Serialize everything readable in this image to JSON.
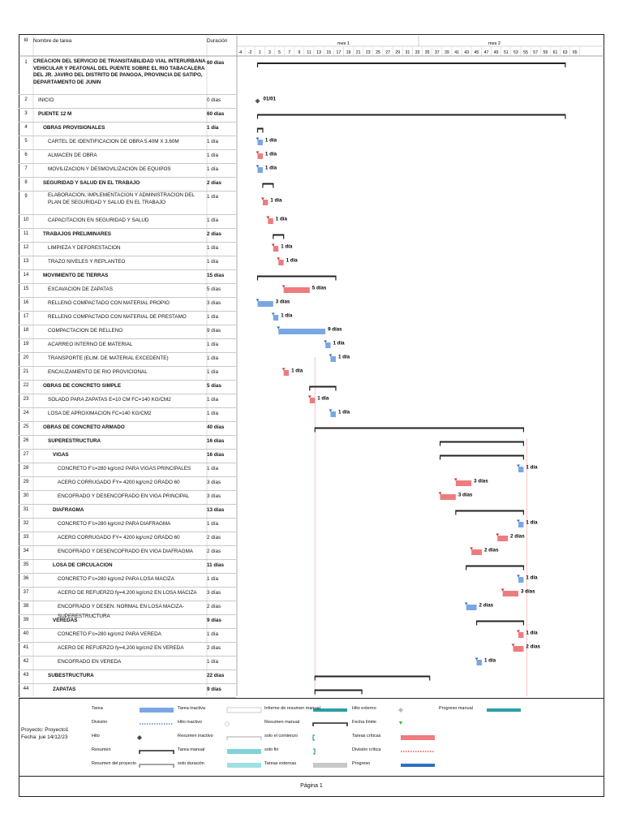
{
  "header": {
    "col_id": "Id",
    "col_name": "Nombre de tarea",
    "col_dur": "Duración",
    "month1": "mes 1",
    "month2": "mes 2",
    "ticks": [
      "-4",
      "-2",
      "1",
      "3",
      "5",
      "7",
      "9",
      "11",
      "13",
      "15",
      "17",
      "19",
      "21",
      "23",
      "25",
      "27",
      "29",
      "31",
      "33",
      "35",
      "37",
      "39",
      "41",
      "43",
      "45",
      "47",
      "49",
      "51",
      "53",
      "55",
      "57",
      "59",
      "61",
      "63",
      "65"
    ]
  },
  "tasks": [
    {
      "id": "1",
      "name": "CREACION DEL SERVICIO DE TRANSITABILIDAD VIAL INTERURBANA VEHICULAR Y PEATONAL DEL PUENTE SOBRE EL RIO TABACALERA DEL JR. JAVIRO DEL DISTRITO DE PANGOA, PROVINCIA DE SATIPO, DEPARTAMENTO DE JUNIN",
      "dur": "60 días",
      "bold": true,
      "lines": 3,
      "indent": 0
    },
    {
      "id": "2",
      "name": "INICIO",
      "dur": "0 días",
      "bold": false,
      "lines": 1,
      "indent": 1
    },
    {
      "id": "3",
      "name": "PUENTE 12 M",
      "dur": "60 días",
      "bold": true,
      "lines": 1,
      "indent": 1
    },
    {
      "id": "4",
      "name": "OBRAS PROVISIONALES",
      "dur": "1 día",
      "bold": true,
      "lines": 1,
      "indent": 2
    },
    {
      "id": "5",
      "name": "CARTEL DE IDENTIFICACION DE OBRA  5.40M X 3.60M",
      "dur": "1 día",
      "bold": false,
      "lines": 1,
      "indent": 3
    },
    {
      "id": "6",
      "name": "ALMACEN DE OBRA",
      "dur": "1 día",
      "bold": false,
      "lines": 1,
      "indent": 3
    },
    {
      "id": "7",
      "name": "MOVILIZACION Y DESMOVILIZACION DE EQUIPOS",
      "dur": "1 día",
      "bold": false,
      "lines": 1,
      "indent": 3
    },
    {
      "id": "8",
      "name": "SEGURIDAD Y SALUD EN EL TRABAJO",
      "dur": "2 días",
      "bold": true,
      "lines": 1,
      "indent": 2
    },
    {
      "id": "9",
      "name": "ELABORACION, IMPLEMENTACION Y ADMINISTRACION DEL PLAN DE SEGURIDAD Y SALUD EN EL TRABAJO",
      "dur": "1 día",
      "bold": false,
      "lines": 2,
      "indent": 3
    },
    {
      "id": "10",
      "name": "CAPACITACION EN SEGURIDAD Y SALUD",
      "dur": "1 día",
      "bold": false,
      "lines": 1,
      "indent": 3
    },
    {
      "id": "11",
      "name": "TRABAJOS PRELIMINARES",
      "dur": "2 días",
      "bold": true,
      "lines": 1,
      "indent": 2
    },
    {
      "id": "12",
      "name": "LIMPIEZA Y DEFORESTACION",
      "dur": "1 día",
      "bold": false,
      "lines": 1,
      "indent": 3
    },
    {
      "id": "13",
      "name": "TRAZO NIVELES Y REPLANTEO",
      "dur": "1 día",
      "bold": false,
      "lines": 1,
      "indent": 3
    },
    {
      "id": "14",
      "name": "MOVIMIENTO DE TIERRAS",
      "dur": "15 días",
      "bold": true,
      "lines": 1,
      "indent": 2
    },
    {
      "id": "15",
      "name": "EXCAVACION  DE ZAPATAS",
      "dur": "5 días",
      "bold": false,
      "lines": 1,
      "indent": 3
    },
    {
      "id": "16",
      "name": "RELLENO COMPACTADO CON MATERIAL PROPIO",
      "dur": "3 días",
      "bold": false,
      "lines": 1,
      "indent": 3
    },
    {
      "id": "17",
      "name": "RELLENO COMPACTADO CON MATERIAL DE PRESTAMO",
      "dur": "1 día",
      "bold": false,
      "lines": 1,
      "indent": 3
    },
    {
      "id": "18",
      "name": "COMPACTACION DE RELLENO",
      "dur": "9 días",
      "bold": false,
      "lines": 1,
      "indent": 3
    },
    {
      "id": "19",
      "name": "ACARREO INTERNO DE MATERIAL",
      "dur": "1 día",
      "bold": false,
      "lines": 1,
      "indent": 3
    },
    {
      "id": "20",
      "name": "TRANSPORTE (ELIM. DE MATERIAL EXCEDENTE)",
      "dur": "1 día",
      "bold": false,
      "lines": 1,
      "indent": 3
    },
    {
      "id": "21",
      "name": "ENCAUZAMIENTO DE RIO PROVICIONAL",
      "dur": "1 día",
      "bold": false,
      "lines": 1,
      "indent": 3
    },
    {
      "id": "22",
      "name": "OBRAS DE CONCRETO SIMPLE",
      "dur": "5 días",
      "bold": true,
      "lines": 1,
      "indent": 2
    },
    {
      "id": "23",
      "name": "SOLADO PARA ZAPATAS E=10 CM FC=140 KG/CM2",
      "dur": "1 día",
      "bold": false,
      "lines": 1,
      "indent": 3
    },
    {
      "id": "24",
      "name": "LOSA DE APROXIMACION FC=140 KG/CM2",
      "dur": "1 día",
      "bold": false,
      "lines": 1,
      "indent": 3
    },
    {
      "id": "25",
      "name": "OBRAS DE CONCRETO ARMADO",
      "dur": "40 días",
      "bold": true,
      "lines": 1,
      "indent": 2
    },
    {
      "id": "26",
      "name": "SUPERESTRUCTURA",
      "dur": "16 días",
      "bold": true,
      "lines": 1,
      "indent": 3
    },
    {
      "id": "27",
      "name": "VIGAS",
      "dur": "16 días",
      "bold": true,
      "lines": 1,
      "indent": 4
    },
    {
      "id": "28",
      "name": "CONCRETO F'c=280 kg/cm2 PARA VIGAS PRINCIPALES",
      "dur": "1 día",
      "bold": false,
      "lines": 1,
      "indent": 5
    },
    {
      "id": "29",
      "name": "ACERO CORRUGADO FY= 4200 kg/cm2 GRADO 60",
      "dur": "3 días",
      "bold": false,
      "lines": 1,
      "indent": 5
    },
    {
      "id": "30",
      "name": "ENCOFRADO Y DESENCOFRADO EN VIGA PRINCIPAL",
      "dur": "3 días",
      "bold": false,
      "lines": 1,
      "indent": 5
    },
    {
      "id": "31",
      "name": "DIAFRAGMA",
      "dur": "13 días",
      "bold": true,
      "lines": 1,
      "indent": 4
    },
    {
      "id": "32",
      "name": "CONCRETO F'c=280 kg/cm2 PARA DIAFRAGMA",
      "dur": "1 día",
      "bold": false,
      "lines": 1,
      "indent": 5
    },
    {
      "id": "33",
      "name": "ACERO CORRUGADO FY= 4200 kg/cm2 GRADO 60",
      "dur": "2 días",
      "bold": false,
      "lines": 1,
      "indent": 5
    },
    {
      "id": "34",
      "name": "ENCOFRADO Y DESENCOFRADO EN VIGA DIAFRAGMA",
      "dur": "2 días",
      "bold": false,
      "lines": 1,
      "indent": 5
    },
    {
      "id": "35",
      "name": "LOSA DE CIRCULACION",
      "dur": "11 días",
      "bold": true,
      "lines": 1,
      "indent": 4
    },
    {
      "id": "36",
      "name": "CONCRETO F'c=280 kg/cm2 PARA LOSA MACIZA",
      "dur": "1 día",
      "bold": false,
      "lines": 1,
      "indent": 5
    },
    {
      "id": "37",
      "name": "ACERO DE REFUERZO fy=4,200 kg/cm2 EN LOSA MACIZA",
      "dur": "3 días",
      "bold": false,
      "lines": 1,
      "indent": 5
    },
    {
      "id": "38",
      "name": "ENCOFRADO Y DESEN. NORMAL EN LOSA MACIZA- SUPERESTRUCTURA",
      "dur": "2 días",
      "bold": false,
      "lines": 1,
      "indent": 5
    },
    {
      "id": "39",
      "name": "VEREDAS",
      "dur": "9 días",
      "bold": true,
      "lines": 1,
      "indent": 4
    },
    {
      "id": "40",
      "name": "CONCRETO F'c=280 kg/cm2 PARA VEREDA",
      "dur": "1 día",
      "bold": false,
      "lines": 1,
      "indent": 5
    },
    {
      "id": "41",
      "name": "ACERO DE REFUERZO fy=4,200 kg/cm2 EN VEREDA",
      "dur": "2 días",
      "bold": false,
      "lines": 1,
      "indent": 5
    },
    {
      "id": "42",
      "name": "ENCOFRADO EN VEREDA",
      "dur": "1 día",
      "bold": false,
      "lines": 1,
      "indent": 5
    },
    {
      "id": "43",
      "name": "SUBESTRUCTURA",
      "dur": "22 días",
      "bold": true,
      "lines": 1,
      "indent": 3
    },
    {
      "id": "44",
      "name": "ZAPATAS",
      "dur": "9 días",
      "bold": true,
      "lines": 1,
      "indent": 4
    }
  ],
  "bars": [
    {
      "row": 0,
      "type": "summary",
      "start": 1,
      "end": 60,
      "label": ""
    },
    {
      "row": 1,
      "type": "milestone",
      "start": 1,
      "end": 1,
      "label": "01/01"
    },
    {
      "row": 2,
      "type": "summary",
      "start": 1,
      "end": 60,
      "label": ""
    },
    {
      "row": 3,
      "type": "summary",
      "start": 1,
      "end": 2,
      "label": ""
    },
    {
      "row": 4,
      "type": "task",
      "start": 1,
      "end": 2,
      "label": "1 día"
    },
    {
      "row": 5,
      "type": "critical",
      "start": 1,
      "end": 2,
      "label": "1 día"
    },
    {
      "row": 6,
      "type": "task",
      "start": 1,
      "end": 2,
      "label": "1 día"
    },
    {
      "row": 7,
      "type": "summary",
      "start": 2,
      "end": 4,
      "label": ""
    },
    {
      "row": 8,
      "type": "critical",
      "start": 2,
      "end": 3,
      "label": "1 día"
    },
    {
      "row": 9,
      "type": "critical",
      "start": 3,
      "end": 4,
      "label": "1 día"
    },
    {
      "row": 10,
      "type": "summary",
      "start": 4,
      "end": 6,
      "label": ""
    },
    {
      "row": 11,
      "type": "critical",
      "start": 4,
      "end": 5,
      "label": "1 día"
    },
    {
      "row": 12,
      "type": "critical",
      "start": 5,
      "end": 6,
      "label": "1 día"
    },
    {
      "row": 13,
      "type": "summary",
      "start": 1,
      "end": 16,
      "label": ""
    },
    {
      "row": 14,
      "type": "critical",
      "start": 6,
      "end": 11,
      "label": "5 días"
    },
    {
      "row": 15,
      "type": "task",
      "start": 1,
      "end": 4,
      "label": "3 días"
    },
    {
      "row": 16,
      "type": "task",
      "start": 4,
      "end": 5,
      "label": "1 día"
    },
    {
      "row": 17,
      "type": "task",
      "start": 5,
      "end": 14,
      "label": "9 días"
    },
    {
      "row": 18,
      "type": "task",
      "start": 14,
      "end": 15,
      "label": "1 día"
    },
    {
      "row": 19,
      "type": "task",
      "start": 15,
      "end": 16,
      "label": "1 día"
    },
    {
      "row": 20,
      "type": "critical",
      "start": 6,
      "end": 7,
      "label": "1 día"
    },
    {
      "row": 21,
      "type": "summary",
      "start": 11,
      "end": 16,
      "label": ""
    },
    {
      "row": 22,
      "type": "critical",
      "start": 11,
      "end": 12,
      "label": "1 día"
    },
    {
      "row": 23,
      "type": "task",
      "start": 15,
      "end": 16,
      "label": "1 día"
    },
    {
      "row": 24,
      "type": "summary",
      "start": 12,
      "end": 52,
      "label": ""
    },
    {
      "row": 25,
      "type": "summary",
      "start": 36,
      "end": 52,
      "label": ""
    },
    {
      "row": 26,
      "type": "summary",
      "start": 36,
      "end": 52,
      "label": ""
    },
    {
      "row": 27,
      "type": "task",
      "start": 51,
      "end": 52,
      "label": "1 día"
    },
    {
      "row": 28,
      "type": "critical",
      "start": 39,
      "end": 42,
      "label": "3 días"
    },
    {
      "row": 29,
      "type": "critical",
      "start": 36,
      "end": 39,
      "label": "3 días"
    },
    {
      "row": 30,
      "type": "summary",
      "start": 39,
      "end": 52,
      "label": ""
    },
    {
      "row": 31,
      "type": "task",
      "start": 51,
      "end": 52,
      "label": "1 día"
    },
    {
      "row": 32,
      "type": "critical",
      "start": 47,
      "end": 49,
      "label": "2 días"
    },
    {
      "row": 33,
      "type": "critical",
      "start": 42,
      "end": 44,
      "label": "2 días"
    },
    {
      "row": 34,
      "type": "summary",
      "start": 41,
      "end": 52,
      "label": ""
    },
    {
      "row": 35,
      "type": "task",
      "start": 51,
      "end": 52,
      "label": "1 día"
    },
    {
      "row": 36,
      "type": "critical",
      "start": 48,
      "end": 51,
      "label": "3 días"
    },
    {
      "row": 37,
      "type": "task",
      "start": 41,
      "end": 43,
      "label": "2 días"
    },
    {
      "row": 38,
      "type": "summary",
      "start": 43,
      "end": 52,
      "label": ""
    },
    {
      "row": 39,
      "type": "critical",
      "start": 51,
      "end": 52,
      "label": "1 día"
    },
    {
      "row": 40,
      "type": "critical",
      "start": 50,
      "end": 52,
      "label": "2 días"
    },
    {
      "row": 41,
      "type": "task",
      "start": 43,
      "end": 44,
      "label": "1 día"
    },
    {
      "row": 42,
      "type": "summary",
      "start": 12,
      "end": 34,
      "label": ""
    },
    {
      "row": 43,
      "type": "summary",
      "start": 12,
      "end": 21,
      "label": ""
    }
  ],
  "legend": {
    "project": "Proyecto: Proyecto1",
    "date": "Fecha: jue 14/12/23",
    "items": [
      "Tarea",
      "División",
      "Hito",
      "Resumen",
      "Resumen del proyecto",
      "Tarea inactiva",
      "Hito inactivo",
      "Resumen inactivo",
      "Tarea manual",
      "solo duración",
      "Informe de resumen manual",
      "Resumen manual",
      "solo el comienzo",
      "solo fin",
      "Tareas externas",
      "Hito externo",
      "Fecha límite",
      "Tareas críticas",
      "División crítica",
      "Progreso",
      "Progreso manual"
    ]
  },
  "footer": {
    "page": "Página 1"
  },
  "colors": {
    "task": "#7aa7e3",
    "critical": "#ee7b80",
    "summary": "#222222",
    "manual": "#2a9fa6",
    "progress": "#2f6fc2"
  }
}
